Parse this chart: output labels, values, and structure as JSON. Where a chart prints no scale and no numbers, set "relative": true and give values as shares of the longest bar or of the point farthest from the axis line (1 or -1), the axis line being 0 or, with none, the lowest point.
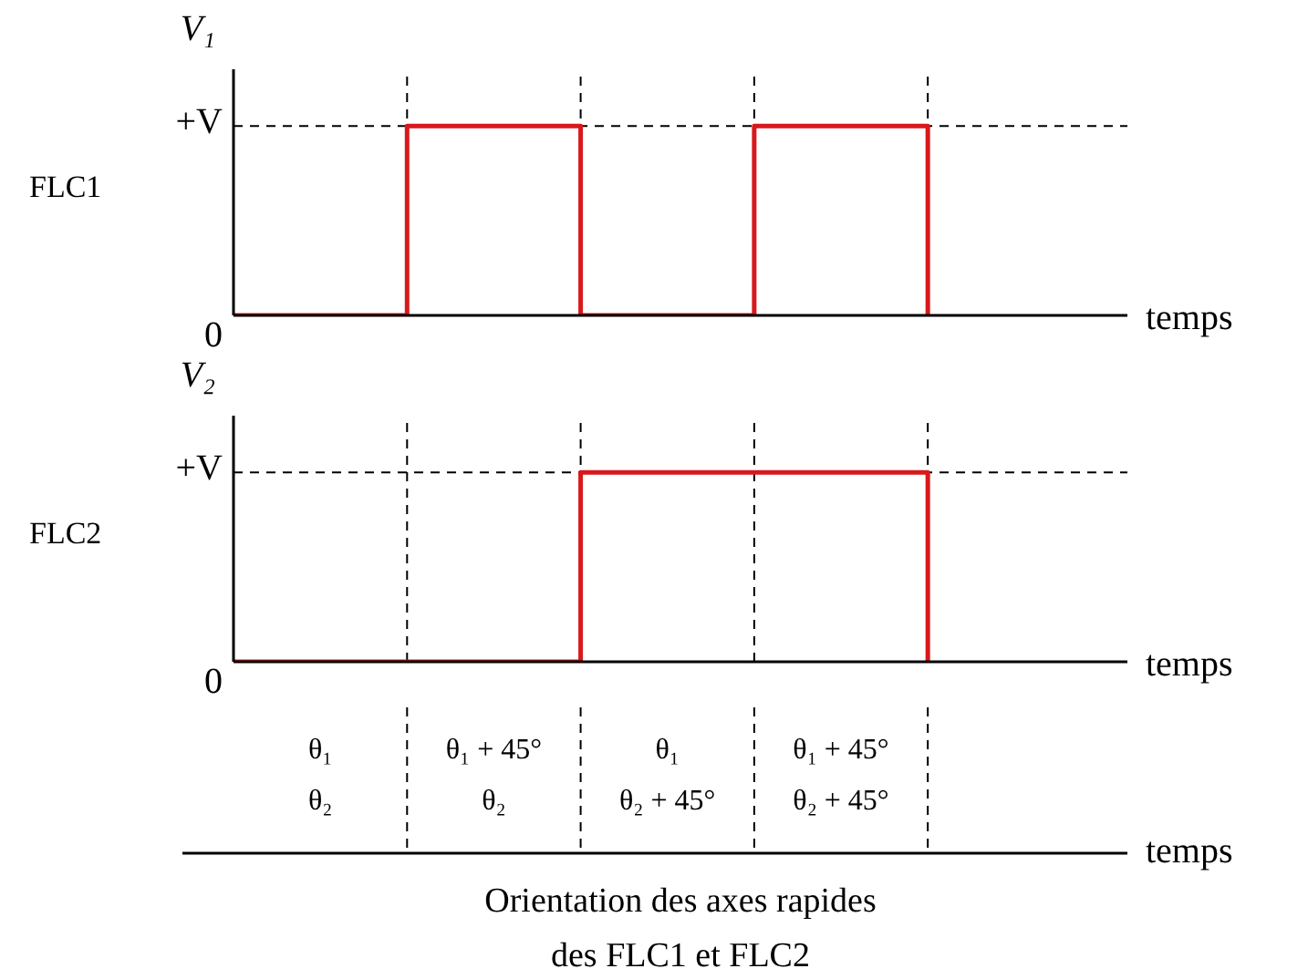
{
  "chart_data": [
    {
      "type": "step",
      "ylabel": "V₁",
      "xlabel": "temps",
      "relative": true,
      "annotations": [
        "FLC1",
        "0",
        "+V"
      ],
      "categories": [
        null,
        null,
        null,
        null,
        null
      ],
      "series": [
        {
          "color": "#d7191c",
          "values": [
            0,
            1,
            0,
            1,
            0
          ]
        }
      ],
      "grid": true,
      "line_style": "solid"
    },
    {
      "type": "step",
      "ylabel": "V₂",
      "xlabel": "temps",
      "relative": true,
      "annotations": [
        "FLC2",
        "0",
        "+V"
      ],
      "categories": [
        null,
        null,
        null,
        null,
        null
      ],
      "series": [
        {
          "color": "#d7191c",
          "values": [
            0,
            0,
            1,
            1,
            0
          ]
        }
      ],
      "grid": true,
      "line_style": "solid"
    },
    {
      "type": "other",
      "xlabel": "temps",
      "categories": [
        "θ₁\nθ₂",
        "θ₁ + 45°\nθ₂",
        "θ₁\nθ₂ + 45°",
        "θ₁ + 45°\nθ₂ + 45°"
      ],
      "annotations": [
        "Orientation des axes rapides\ndes FLC1 et FLC2"
      ]
    }
  ]
}
